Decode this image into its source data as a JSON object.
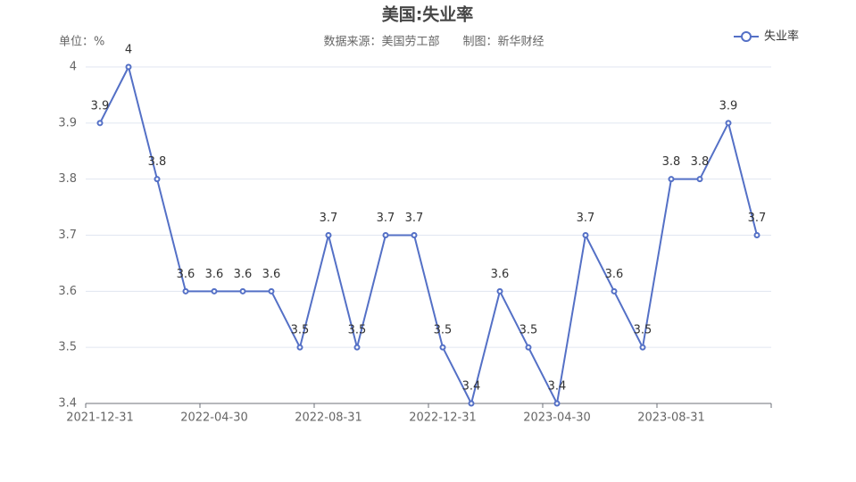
{
  "chart_data": {
    "type": "line",
    "title": "美国:失业率",
    "subtitle": "数据来源：美国劳工部　　制图：新华财经",
    "unit_label": "单位：%",
    "categories": [
      "2021-12-31",
      null,
      null,
      null,
      "2022-04-30",
      null,
      null,
      null,
      "2022-08-31",
      null,
      null,
      null,
      "2022-12-31",
      null,
      null,
      null,
      "2023-04-30",
      null,
      null,
      null,
      "2023-08-31",
      null,
      null,
      null
    ],
    "series": [
      {
        "name": "失业率",
        "color": "#5470c6",
        "values": [
          3.9,
          4,
          3.8,
          3.6,
          3.6,
          3.6,
          3.6,
          3.5,
          3.7,
          3.5,
          3.7,
          3.7,
          3.5,
          3.4,
          3.6,
          3.5,
          3.4,
          3.7,
          3.6,
          3.5,
          3.8,
          3.8,
          3.9,
          3.7
        ]
      }
    ],
    "ylim": [
      3.4,
      4
    ],
    "yticks": [
      3.4,
      3.5,
      3.6,
      3.7,
      3.8,
      3.9,
      4
    ],
    "grid": true,
    "legend": "top-right"
  }
}
